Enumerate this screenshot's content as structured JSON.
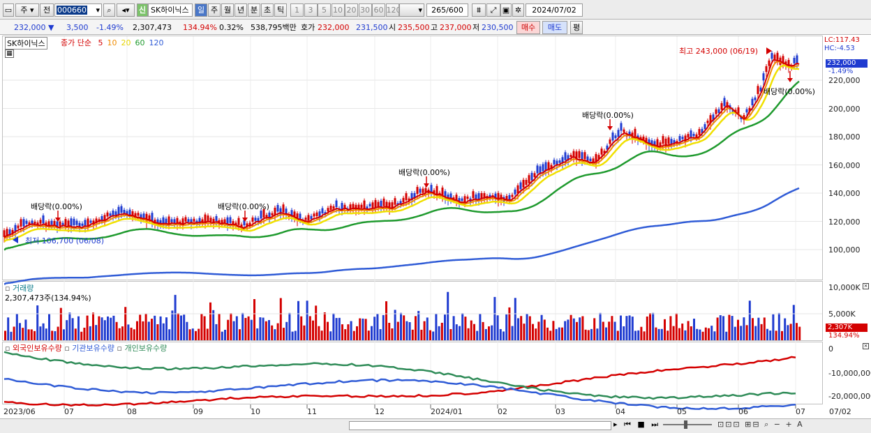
{
  "toolbar": {
    "period_label": "주",
    "prev_label": "전",
    "code": "000660",
    "name_badge": "신",
    "stock_name": "SK하이닉스",
    "period_buttons": [
      "일",
      "주",
      "월",
      "년",
      "분",
      "초",
      "틱"
    ],
    "interval_buttons": [
      "1",
      "3",
      "5",
      "10",
      "20",
      "30",
      "60",
      "120"
    ],
    "count": "265",
    "count_total": "/600",
    "date": "2024/07/02"
  },
  "quote": {
    "price": "232,000",
    "change": "3,500",
    "change_pct": "-1.49%",
    "volume": "2,307,473",
    "volume_ratio": "134.94%",
    "turnover": "0.32%",
    "amount": "538,795백만",
    "bid_label": "호가",
    "bid": "232,000",
    "ask": "231,500",
    "open_label": "시",
    "open": "235,500",
    "high_label": "고",
    "high": "237,000",
    "low_label": "저",
    "low": "230,500",
    "buy_label": "매수",
    "sell_label": "매도",
    "eval_label": "평"
  },
  "price_panel": {
    "stock_tag": "SK하이닉스",
    "ma_title": "종가 단순",
    "ma_periods": [
      "5",
      "10",
      "20",
      "60",
      "120"
    ],
    "ma_colors": [
      "#d40000",
      "#f08c00",
      "#e6d400",
      "#1f9a2e",
      "#2f5bd6"
    ],
    "lc": "LC:117.43",
    "hc": "HC:-4.53",
    "last_price": "232,000",
    "last_pct": "-1.49%",
    "y_ticks": [
      "220,000",
      "200,000",
      "180,000",
      "160,000",
      "140,000",
      "120,000",
      "100,000"
    ],
    "annotations": {
      "high": "최고 243,000 (06/19)",
      "low": "최저 106,700 (06/08)",
      "dividend": "배당락(0.00%)"
    }
  },
  "volume_panel": {
    "title": "거래량",
    "value": "2,307,473주(134.94%)",
    "y_ticks": [
      "10,000K",
      "5,000K"
    ],
    "last": "2,307K",
    "last_pct": "134.94%"
  },
  "holders_panel": {
    "series": [
      "외국인보유수량",
      "기관보유수량",
      "개인보유수량"
    ],
    "series_colors": [
      "#d40000",
      "#2f5bd6",
      "#2e8b57"
    ],
    "y_ticks": [
      "0",
      "-10,000,000",
      "-20,000,000"
    ]
  },
  "x_axis": {
    "labels": [
      "2023/06",
      "07",
      "08",
      "09",
      "10",
      "11",
      "12",
      "2024/01",
      "02",
      "03",
      "04",
      "05",
      "06",
      "07"
    ],
    "last_date": "07/02"
  }
}
